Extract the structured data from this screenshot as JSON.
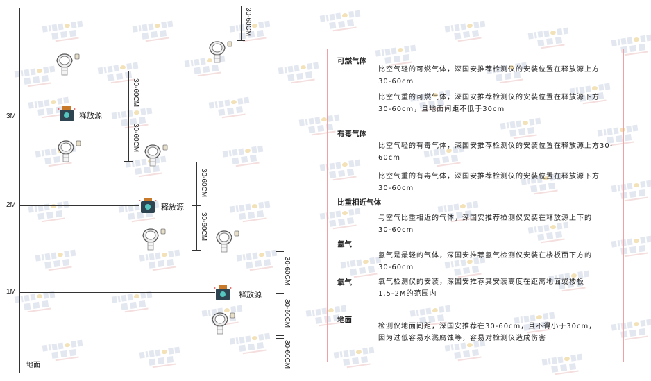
{
  "watermark": "SINGOAN 深国安",
  "levels": {
    "m3": "3M",
    "m2": "2M",
    "m1": "1M",
    "ground": "地面"
  },
  "source_label": "释放源",
  "dim_label": "30-60CM",
  "notes": [
    {
      "title": "可燃气体",
      "paras": [
        "比空气轻的可燃气体，深国安推荐检测仪的安装位置在释放源上方30-60cm",
        "比空气重的可燃气体，深国安推荐检测仪的安装位置在释放源下方30-60cm，且地面间距不低于30cm"
      ]
    },
    {
      "title": "有毒气体",
      "paras": [
        "比空气轻的有毒气体，深国安推荐检测仪的安装位置在释放源上方30-60cm",
        "比空气重的有毒气体，深国安推荐检测仪的安装位置在释放源下方30-60cm"
      ]
    },
    {
      "title": "比重相近气体",
      "paras": [
        "与空气比重相近的气体，深国安推荐检测仪安装在释放源上下的30-60cm"
      ]
    },
    {
      "title": "氢气",
      "paras": [
        "氢气是最轻的气体，深国安推荐氢气检测仪安装在楼板面下方的30-60cm"
      ]
    },
    {
      "title": "氧气",
      "paras": [
        "氧气检测仪的安装，深国安推荐其安装高度在距离地面或楼板1.5-2M的范围内"
      ]
    },
    {
      "title": "地面",
      "paras": [
        "检测仪地面间距，深国安推荐在30-60cm，且不得小于30cm，因为过低容易水溅腐蚀等，容易对检测仪造成伤害"
      ]
    }
  ]
}
